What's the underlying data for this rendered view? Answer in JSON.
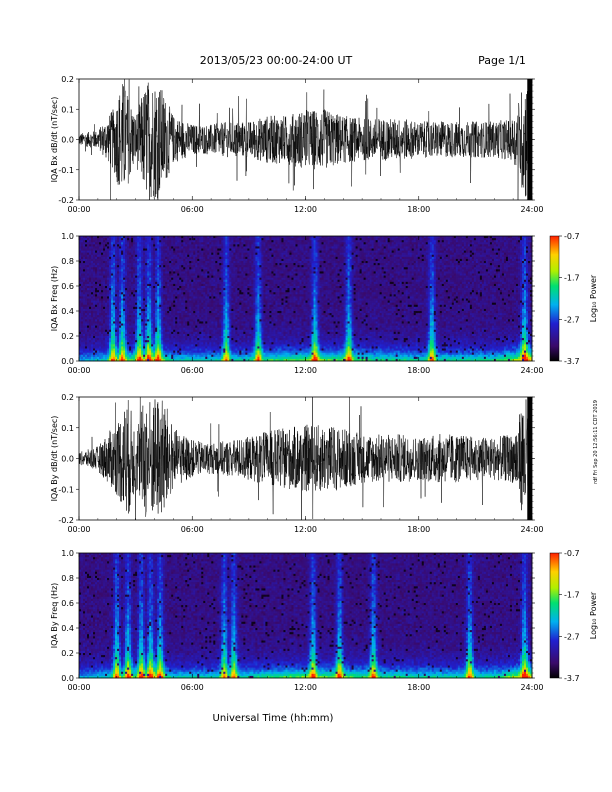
{
  "header": {
    "title": "2013/05/23  00:00-24:00 UT",
    "page": "Page 1/1"
  },
  "footer": {
    "xlabel": "Universal Time (hh:mm)",
    "side_note": "rdf Fri Sep 20 12:56:11 CDT 2019"
  },
  "colorbar": {
    "ticks": [
      "-0.7",
      "-1.7",
      "-2.7",
      "-3.7"
    ],
    "label": "Log₁₀ Power",
    "colors": [
      "#000000",
      "#3a0a6a",
      "#2020d0",
      "#00b0f0",
      "#00e070",
      "#b0f000",
      "#ffd000",
      "#ff2000"
    ]
  },
  "chart_data": [
    {
      "type": "line",
      "ylabel": "IQA Bx dB/dt (nT/sec)",
      "x_ticks": [
        "00:00",
        "06:00",
        "12:00",
        "18:00",
        "24:00"
      ],
      "xlim": [
        0,
        24
      ],
      "ylim": [
        -0.2,
        0.2
      ],
      "y_ticks": [
        "0.2",
        "0.1",
        "0.0",
        "-0.1",
        "-0.2"
      ],
      "envelope": {
        "x": [
          0,
          1,
          1.8,
          2.3,
          3,
          3.6,
          4.2,
          5,
          6,
          7,
          8,
          9,
          10,
          11,
          12,
          13,
          14,
          15,
          16,
          17,
          18,
          19,
          20,
          21,
          22,
          23,
          23.6,
          24
        ],
        "amplitude": [
          0.02,
          0.03,
          0.1,
          0.2,
          0.08,
          0.2,
          0.2,
          0.08,
          0.05,
          0.05,
          0.06,
          0.06,
          0.08,
          0.08,
          0.1,
          0.1,
          0.08,
          0.07,
          0.07,
          0.07,
          0.06,
          0.06,
          0.06,
          0.06,
          0.06,
          0.07,
          0.2,
          0.2
        ]
      }
    },
    {
      "type": "heatmap",
      "ylabel": "IQA Bx Freq (Hz)",
      "x_ticks": [
        "00:00",
        "06:00",
        "12:00",
        "18:00",
        "24:00"
      ],
      "xlim": [
        0,
        24
      ],
      "ylim": [
        0,
        1.0
      ],
      "y_ticks": [
        "1.0",
        "0.8",
        "0.6",
        "0.4",
        "0.2",
        "0.0"
      ],
      "zlim": [
        -3.7,
        -0.7
      ],
      "zlabel": "Log₁₀ Power"
    },
    {
      "type": "line",
      "ylabel": "IQA By dB/dt (nT/sec)",
      "x_ticks": [
        "00:00",
        "06:00",
        "12:00",
        "18:00",
        "24:00"
      ],
      "xlim": [
        0,
        24
      ],
      "ylim": [
        -0.2,
        0.2
      ],
      "y_ticks": [
        "0.2",
        "0.1",
        "0.0",
        "-0.1",
        "-0.2"
      ],
      "envelope": {
        "x": [
          0,
          1,
          2,
          2.6,
          3,
          3.5,
          4,
          4.5,
          5,
          6,
          7,
          8,
          9,
          10,
          11,
          12,
          13,
          14,
          15,
          16,
          17,
          18,
          19,
          20,
          21,
          22,
          23,
          23.6,
          24
        ],
        "amplitude": [
          0.02,
          0.04,
          0.12,
          0.2,
          0.1,
          0.2,
          0.2,
          0.2,
          0.1,
          0.06,
          0.05,
          0.06,
          0.07,
          0.09,
          0.1,
          0.11,
          0.11,
          0.1,
          0.08,
          0.08,
          0.08,
          0.07,
          0.08,
          0.08,
          0.07,
          0.07,
          0.08,
          0.2,
          0.2
        ]
      }
    },
    {
      "type": "heatmap",
      "ylabel": "IQA By Freq (Hz)",
      "x_ticks": [
        "00:00",
        "06:00",
        "12:00",
        "18:00",
        "24:00"
      ],
      "xlim": [
        0,
        24
      ],
      "ylim": [
        0,
        1.0
      ],
      "y_ticks": [
        "1.0",
        "0.8",
        "0.6",
        "0.4",
        "0.2",
        "0.0"
      ],
      "zlim": [
        -3.7,
        -0.7
      ],
      "zlabel": "Log₁₀ Power"
    }
  ]
}
